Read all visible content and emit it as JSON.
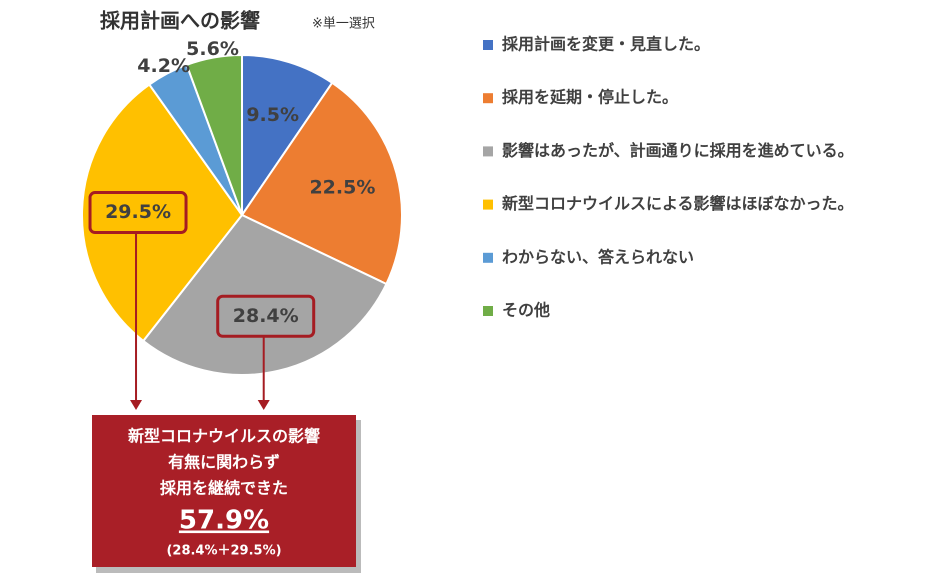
{
  "chart_data": {
    "type": "pie",
    "title": "採用計画への影響",
    "subtitle": "※単一選択",
    "categories": [
      "採用計画を変更・見直した。",
      "採用を延期・停止した。",
      "影響はあったが、計画通りに採用を進めている。",
      "新型コロナウイルスによる影響はほぼなかった。",
      "わからない、答えられない",
      "その他"
    ],
    "values": [
      9.5,
      22.5,
      28.4,
      29.5,
      4.2,
      5.6
    ],
    "value_labels": [
      "9.5%",
      "22.5%",
      "28.4%",
      "29.5%",
      "4.2%",
      "5.6%"
    ],
    "colors": [
      "#4472c4",
      "#ed7d31",
      "#a5a5a5",
      "#ffc000",
      "#5b9bd5",
      "#70ad47"
    ],
    "legend": "right",
    "annotations": [
      "新型コロナウイルスの影響",
      "有無に関わらず",
      "採用を継続できた",
      "57.9%",
      "(28.4%＋29.5%)"
    ]
  }
}
